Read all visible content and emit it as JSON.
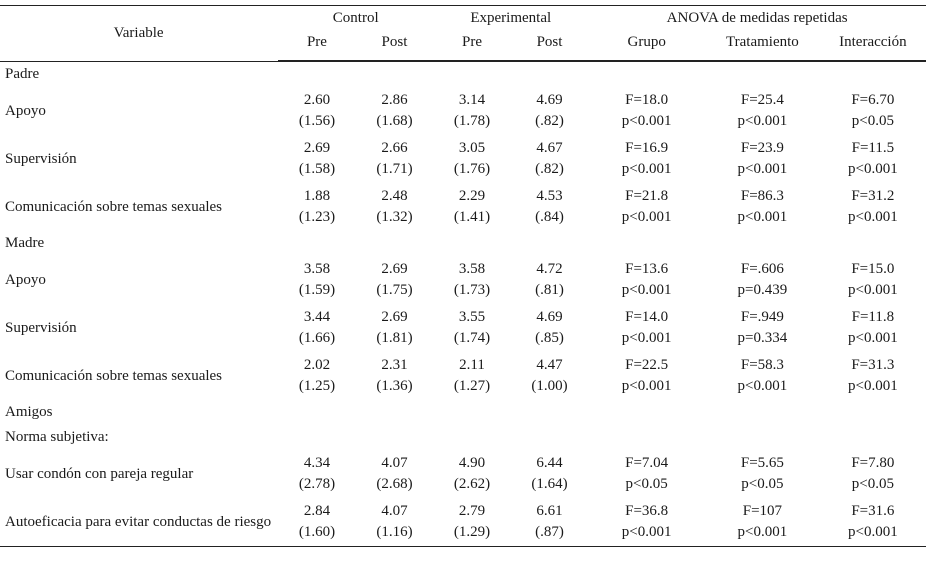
{
  "header": {
    "variable": "Variable",
    "control": "Control",
    "experimental": "Experimental",
    "anova": "ANOVA de medidas repetidas",
    "pre": "Pre",
    "post": "Post",
    "grupo": "Grupo",
    "tratamiento": "Tratamiento",
    "interaccion": "Interacción"
  },
  "rows": [
    {
      "type": "section",
      "label": "Padre"
    },
    {
      "type": "data",
      "label": "Apoyo",
      "c_pre": [
        "2.60",
        "(1.56)"
      ],
      "c_post": [
        "2.86",
        "(1.68)"
      ],
      "e_pre": [
        "3.14",
        "(1.78)"
      ],
      "e_post": [
        "4.69",
        "(.82)"
      ],
      "grupo": [
        "F=18.0",
        "p<0.001"
      ],
      "trat": [
        "F=25.4",
        "p<0.001"
      ],
      "inter": [
        "F=6.70",
        "p<0.05"
      ]
    },
    {
      "type": "data",
      "label": "Supervisión",
      "c_pre": [
        "2.69",
        "(1.58)"
      ],
      "c_post": [
        "2.66",
        "(1.71)"
      ],
      "e_pre": [
        "3.05",
        "(1.76)"
      ],
      "e_post": [
        "4.67",
        "(.82)"
      ],
      "grupo": [
        "F=16.9",
        "p<0.001"
      ],
      "trat": [
        "F=23.9",
        "p<0.001"
      ],
      "inter": [
        "F=11.5",
        "p<0.001"
      ]
    },
    {
      "type": "data",
      "label": "Comunicación sobre temas sexuales",
      "c_pre": [
        "1.88",
        "(1.23)"
      ],
      "c_post": [
        "2.48",
        "(1.32)"
      ],
      "e_pre": [
        "2.29",
        "(1.41)"
      ],
      "e_post": [
        "4.53",
        "(.84)"
      ],
      "grupo": [
        "F=21.8",
        "p<0.001"
      ],
      "trat": [
        "F=86.3",
        "p<0.001"
      ],
      "inter": [
        "F=31.2",
        "p<0.001"
      ]
    },
    {
      "type": "section",
      "label": "Madre"
    },
    {
      "type": "data",
      "label": "Apoyo",
      "c_pre": [
        "3.58",
        "(1.59)"
      ],
      "c_post": [
        "2.69",
        "(1.75)"
      ],
      "e_pre": [
        "3.58",
        "(1.73)"
      ],
      "e_post": [
        "4.72",
        "(.81)"
      ],
      "grupo": [
        "F=13.6",
        "p<0.001"
      ],
      "trat": [
        "F=.606",
        "p=0.439"
      ],
      "inter": [
        "F=15.0",
        "p<0.001"
      ]
    },
    {
      "type": "data",
      "label": "Supervisión",
      "c_pre": [
        "3.44",
        "(1.66)"
      ],
      "c_post": [
        "2.69",
        "(1.81)"
      ],
      "e_pre": [
        "3.55",
        "(1.74)"
      ],
      "e_post": [
        "4.69",
        "(.85)"
      ],
      "grupo": [
        "F=14.0",
        "p<0.001"
      ],
      "trat": [
        "F=.949",
        "p=0.334"
      ],
      "inter": [
        "F=11.8",
        "p<0.001"
      ]
    },
    {
      "type": "data",
      "label": "Comunicación sobre temas sexuales",
      "c_pre": [
        "2.02",
        "(1.25)"
      ],
      "c_post": [
        "2.31",
        "(1.36)"
      ],
      "e_pre": [
        "2.11",
        "(1.27)"
      ],
      "e_post": [
        "4.47",
        "(1.00)"
      ],
      "grupo": [
        "F=22.5",
        "p<0.001"
      ],
      "trat": [
        "F=58.3",
        "p<0.001"
      ],
      "inter": [
        "F=31.3",
        "p<0.001"
      ]
    },
    {
      "type": "section",
      "label": "Amigos"
    },
    {
      "type": "section",
      "label": "Norma subjetiva:"
    },
    {
      "type": "data",
      "label": "Usar condón con pareja regular",
      "c_pre": [
        "4.34",
        "(2.78)"
      ],
      "c_post": [
        "4.07",
        "(2.68)"
      ],
      "e_pre": [
        "4.90",
        "(2.62)"
      ],
      "e_post": [
        "6.44",
        "(1.64)"
      ],
      "grupo": [
        "F=7.04",
        "p<0.05"
      ],
      "trat": [
        "F=5.65",
        "p<0.05"
      ],
      "inter": [
        "F=7.80",
        "p<0.05"
      ]
    },
    {
      "type": "data",
      "label": "Autoeficacia para evitar conductas de riesgo",
      "c_pre": [
        "2.84",
        "(1.60)"
      ],
      "c_post": [
        "4.07",
        "(1.16)"
      ],
      "e_pre": [
        "2.79",
        "(1.29)"
      ],
      "e_post": [
        "6.61",
        "(.87)"
      ],
      "grupo": [
        "F=36.8",
        "p<0.001"
      ],
      "trat": [
        "F=107",
        "p<0.001"
      ],
      "inter": [
        "F=31.6",
        "p<0.001"
      ]
    }
  ]
}
